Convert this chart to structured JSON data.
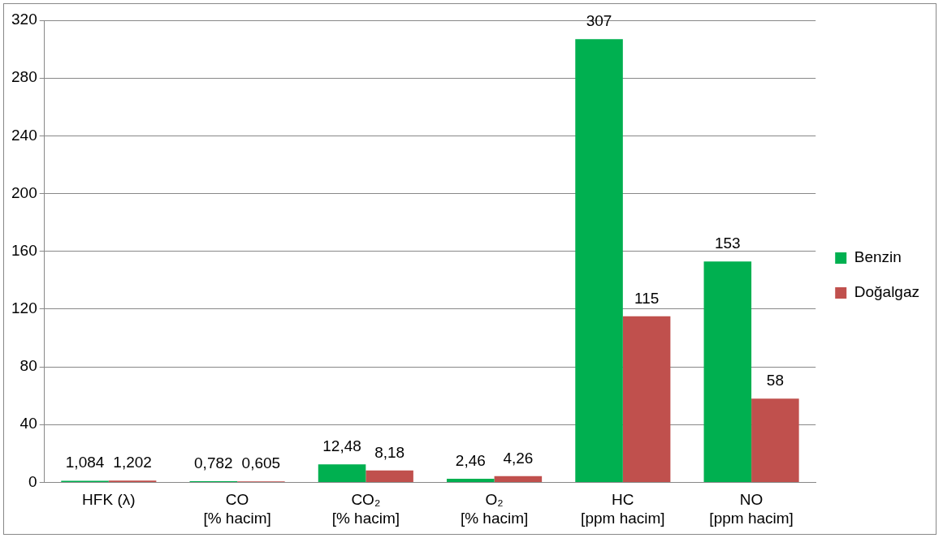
{
  "chart_data": {
    "type": "bar",
    "categories": [
      "HFK (λ)",
      "CO\n[% hacim]",
      "CO₂\n[% hacim]",
      "O₂\n[% hacim]",
      "HC\n[ppm hacim]",
      "NO\n[ppm hacim]"
    ],
    "series": [
      {
        "name": "Benzin",
        "color": "#00b050",
        "values": [
          1.084,
          0.782,
          12.48,
          2.46,
          307,
          153
        ],
        "value_labels": [
          "1,084",
          "0,782",
          "12,48",
          "2,46",
          "307",
          "153"
        ]
      },
      {
        "name": "Doğalgaz",
        "color": "#c0504d",
        "values": [
          1.202,
          0.605,
          8.18,
          4.26,
          115,
          58
        ],
        "value_labels": [
          "1,202",
          "0,605",
          "8,18",
          "4,26",
          "115",
          "58"
        ]
      }
    ],
    "ylim": [
      0,
      320
    ],
    "yticks": [
      0,
      40,
      80,
      120,
      160,
      200,
      240,
      280,
      320
    ],
    "grid": "y",
    "legend": "right"
  }
}
